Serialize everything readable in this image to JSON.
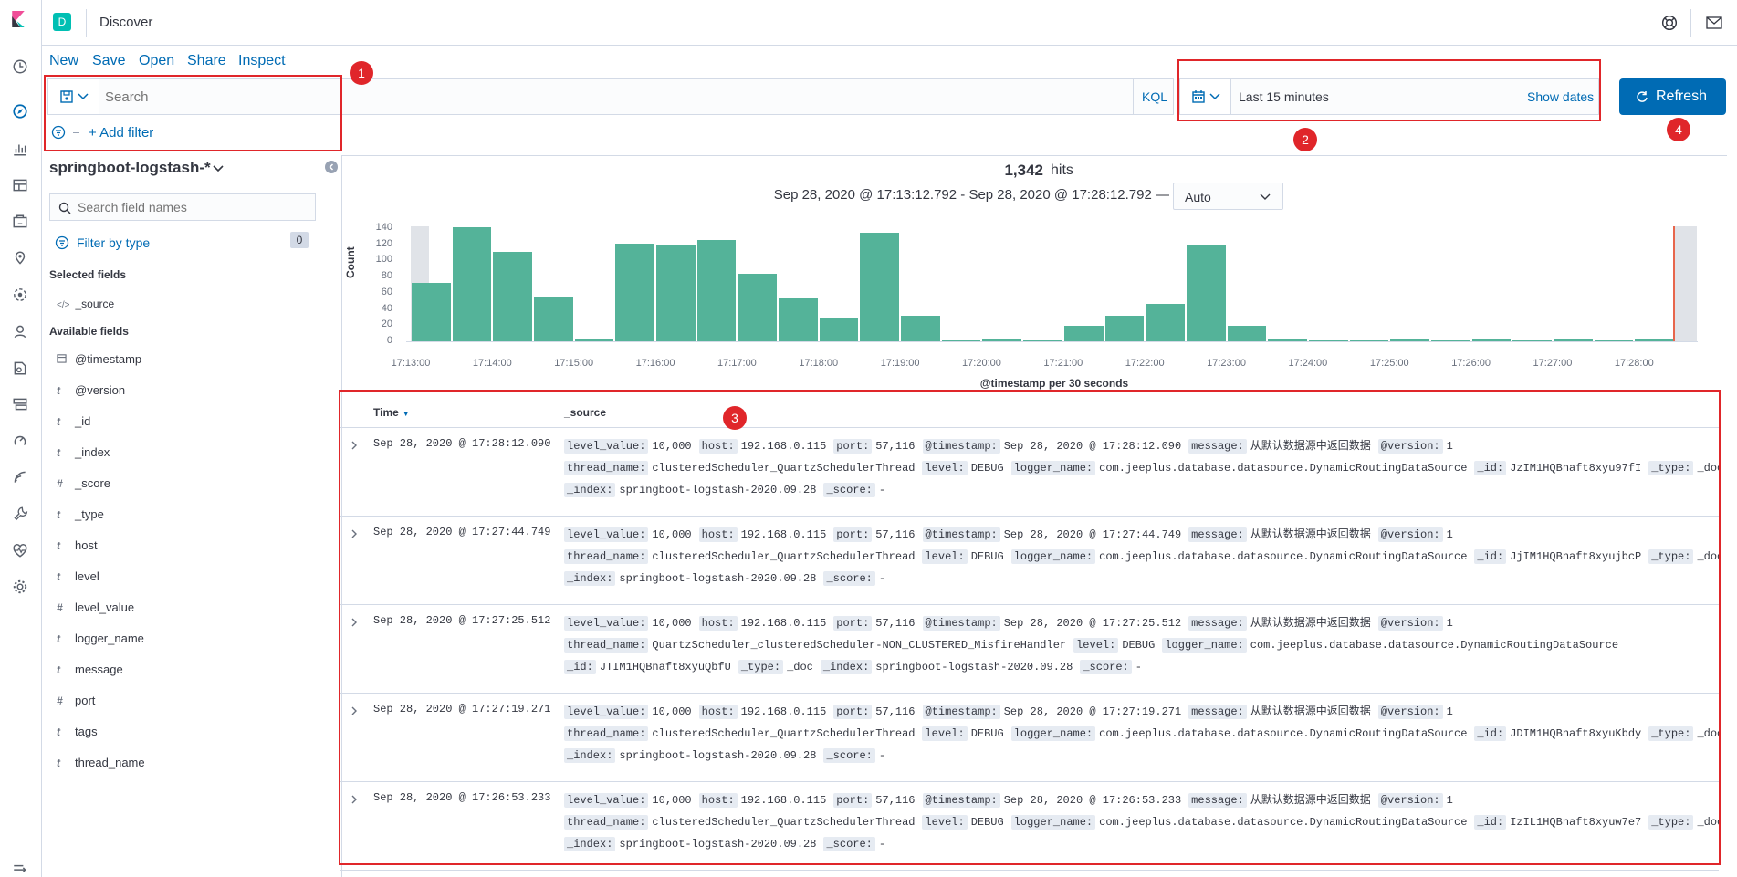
{
  "app": {
    "title": "Discover",
    "space_avatar": "D"
  },
  "toolbar": {
    "new_label": "New",
    "save_label": "Save",
    "open_label": "Open",
    "share_label": "Share",
    "inspect_label": "Inspect"
  },
  "query": {
    "placeholder": "Search",
    "language": "KQL",
    "add_filter_label": "+ Add filter"
  },
  "time": {
    "range_label": "Last 15 minutes",
    "show_dates_label": "Show dates",
    "refresh_label": "Refresh"
  },
  "index_pattern": {
    "name": "springboot-logstash-*"
  },
  "sidebar": {
    "search_placeholder": "Search field names",
    "filter_by_type_label": "Filter by type",
    "filter_count": "0",
    "selected_fields_title": "Selected fields",
    "selected_fields": [
      {
        "type": "source",
        "name": "_source"
      }
    ],
    "available_fields_title": "Available fields",
    "available_fields": [
      {
        "type": "date",
        "name": "@timestamp"
      },
      {
        "type": "t",
        "name": "@version"
      },
      {
        "type": "t",
        "name": "_id"
      },
      {
        "type": "t",
        "name": "_index"
      },
      {
        "type": "#",
        "name": "_score"
      },
      {
        "type": "t",
        "name": "_type"
      },
      {
        "type": "t",
        "name": "host"
      },
      {
        "type": "t",
        "name": "level"
      },
      {
        "type": "#",
        "name": "level_value"
      },
      {
        "type": "t",
        "name": "logger_name"
      },
      {
        "type": "t",
        "name": "message"
      },
      {
        "type": "#",
        "name": "port"
      },
      {
        "type": "t",
        "name": "tags"
      },
      {
        "type": "t",
        "name": "thread_name"
      }
    ]
  },
  "hits": {
    "count": "1,342",
    "label": "hits"
  },
  "interval": {
    "range_text": "Sep 28, 2020 @ 17:13:12.792 - Sep 28, 2020 @ 17:28:12.792 —",
    "selected": "Auto"
  },
  "chart_data": {
    "type": "bar",
    "title": "",
    "xlabel": "@timestamp per 30 seconds",
    "ylabel": "Count",
    "ylim": [
      0,
      140
    ],
    "yticks": [
      "0",
      "20",
      "40",
      "60",
      "80",
      "100",
      "120",
      "140"
    ],
    "xticks": [
      "17:13:00",
      "17:14:00",
      "17:15:00",
      "17:16:00",
      "17:17:00",
      "17:18:00",
      "17:19:00",
      "17:20:00",
      "17:21:00",
      "17:22:00",
      "17:23:00",
      "17:24:00",
      "17:25:00",
      "17:26:00",
      "17:27:00",
      "17:28:00"
    ],
    "categories": [
      "17:13:00",
      "17:13:30",
      "17:14:00",
      "17:14:30",
      "17:15:00",
      "17:15:30",
      "17:16:00",
      "17:16:30",
      "17:17:00",
      "17:17:30",
      "17:18:00",
      "17:18:30",
      "17:19:00",
      "17:19:30",
      "17:20:00",
      "17:20:30",
      "17:21:00",
      "17:21:30",
      "17:22:00",
      "17:22:30",
      "17:23:00",
      "17:23:30",
      "17:24:00",
      "17:24:30",
      "17:25:00",
      "17:25:30",
      "17:26:00",
      "17:26:30",
      "17:27:00",
      "17:27:30",
      "17:28:00"
    ],
    "values": [
      72,
      141,
      111,
      55,
      2,
      121,
      118,
      125,
      84,
      53,
      28,
      134,
      32,
      1,
      3,
      1,
      19,
      32,
      46,
      118,
      19,
      2,
      1,
      1,
      2,
      1,
      3,
      1,
      2,
      1,
      2
    ]
  },
  "table": {
    "col_time": "Time",
    "col_source": "_source",
    "rows": [
      {
        "time": "Sep 28, 2020 @ 17:28:12.090",
        "lines": [
          [
            [
              "level_value:",
              "10,000"
            ],
            [
              "host:",
              "192.168.0.115"
            ],
            [
              "port:",
              "57,116"
            ],
            [
              "@timestamp:",
              "Sep 28, 2020 @ 17:28:12.090"
            ],
            [
              "message:",
              "从默认数据源中返回数据"
            ],
            [
              "@version:",
              "1"
            ]
          ],
          [
            [
              "thread_name:",
              "clusteredScheduler_QuartzSchedulerThread"
            ],
            [
              "level:",
              "DEBUG"
            ],
            [
              "logger_name:",
              "com.jeeplus.database.datasource.DynamicRoutingDataSource"
            ],
            [
              "_id:",
              "JzIM1HQBnaft8xyu97fI"
            ],
            [
              "_type:",
              "_doc"
            ]
          ],
          [
            [
              "_index:",
              "springboot-logstash-2020.09.28"
            ],
            [
              "_score:",
              "-"
            ]
          ]
        ]
      },
      {
        "time": "Sep 28, 2020 @ 17:27:44.749",
        "lines": [
          [
            [
              "level_value:",
              "10,000"
            ],
            [
              "host:",
              "192.168.0.115"
            ],
            [
              "port:",
              "57,116"
            ],
            [
              "@timestamp:",
              "Sep 28, 2020 @ 17:27:44.749"
            ],
            [
              "message:",
              "从默认数据源中返回数据"
            ],
            [
              "@version:",
              "1"
            ]
          ],
          [
            [
              "thread_name:",
              "clusteredScheduler_QuartzSchedulerThread"
            ],
            [
              "level:",
              "DEBUG"
            ],
            [
              "logger_name:",
              "com.jeeplus.database.datasource.DynamicRoutingDataSource"
            ],
            [
              "_id:",
              "JjIM1HQBnaft8xyujbcP"
            ],
            [
              "_type:",
              "_doc"
            ]
          ],
          [
            [
              "_index:",
              "springboot-logstash-2020.09.28"
            ],
            [
              "_score:",
              "-"
            ]
          ]
        ]
      },
      {
        "time": "Sep 28, 2020 @ 17:27:25.512",
        "lines": [
          [
            [
              "level_value:",
              "10,000"
            ],
            [
              "host:",
              "192.168.0.115"
            ],
            [
              "port:",
              "57,116"
            ],
            [
              "@timestamp:",
              "Sep 28, 2020 @ 17:27:25.512"
            ],
            [
              "message:",
              "从默认数据源中返回数据"
            ],
            [
              "@version:",
              "1"
            ]
          ],
          [
            [
              "thread_name:",
              "QuartzScheduler_clusteredScheduler-NON_CLUSTERED_MisfireHandler"
            ],
            [
              "level:",
              "DEBUG"
            ],
            [
              "logger_name:",
              "com.jeeplus.database.datasource.DynamicRoutingDataSource"
            ]
          ],
          [
            [
              "_id:",
              "JTIM1HQBnaft8xyuQbfU"
            ],
            [
              "_type:",
              "_doc"
            ],
            [
              "_index:",
              "springboot-logstash-2020.09.28"
            ],
            [
              "_score:",
              "-"
            ]
          ]
        ]
      },
      {
        "time": "Sep 28, 2020 @ 17:27:19.271",
        "lines": [
          [
            [
              "level_value:",
              "10,000"
            ],
            [
              "host:",
              "192.168.0.115"
            ],
            [
              "port:",
              "57,116"
            ],
            [
              "@timestamp:",
              "Sep 28, 2020 @ 17:27:19.271"
            ],
            [
              "message:",
              "从默认数据源中返回数据"
            ],
            [
              "@version:",
              "1"
            ]
          ],
          [
            [
              "thread_name:",
              "clusteredScheduler_QuartzSchedulerThread"
            ],
            [
              "level:",
              "DEBUG"
            ],
            [
              "logger_name:",
              "com.jeeplus.database.datasource.DynamicRoutingDataSource"
            ],
            [
              "_id:",
              "JDIM1HQBnaft8xyuKbdy"
            ],
            [
              "_type:",
              "_doc"
            ]
          ],
          [
            [
              "_index:",
              "springboot-logstash-2020.09.28"
            ],
            [
              "_score:",
              "-"
            ]
          ]
        ]
      },
      {
        "time": "Sep 28, 2020 @ 17:26:53.233",
        "lines": [
          [
            [
              "level_value:",
              "10,000"
            ],
            [
              "host:",
              "192.168.0.115"
            ],
            [
              "port:",
              "57,116"
            ],
            [
              "@timestamp:",
              "Sep 28, 2020 @ 17:26:53.233"
            ],
            [
              "message:",
              "从默认数据源中返回数据"
            ],
            [
              "@version:",
              "1"
            ]
          ],
          [
            [
              "thread_name:",
              "clusteredScheduler_QuartzSchedulerThread"
            ],
            [
              "level:",
              "DEBUG"
            ],
            [
              "logger_name:",
              "com.jeeplus.database.datasource.DynamicRoutingDataSource"
            ],
            [
              "_id:",
              "IzIL1HQBnaft8xyuw7e7"
            ],
            [
              "_type:",
              "_doc"
            ]
          ],
          [
            [
              "_index:",
              "springboot-logstash-2020.09.28"
            ],
            [
              "_score:",
              "-"
            ]
          ]
        ]
      }
    ]
  },
  "annotations": [
    "1",
    "2",
    "3",
    "4"
  ],
  "colors": {
    "accent": "#006bb4",
    "bar": "#54b399",
    "annotation": "#e0262a"
  }
}
